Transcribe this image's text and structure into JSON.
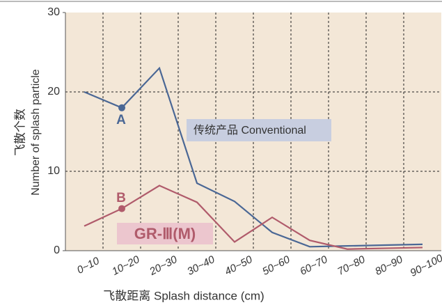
{
  "chart_data": {
    "type": "line",
    "xlabel": "飞散距离 Splash distance (cm)",
    "ylabel": [
      "飞散个数",
      "Number of splash particle"
    ],
    "categories": [
      "0~10",
      "10~20",
      "20~30",
      "30~40",
      "40~50",
      "50~60",
      "60~70",
      "70~80",
      "80~90",
      "90~100"
    ],
    "series": [
      {
        "name": "传统产品 Conventional",
        "color": "#4a6795",
        "values": [
          20,
          18,
          23,
          8.5,
          6.2,
          2.3,
          0.5,
          0.6,
          0.7,
          0.8
        ]
      },
      {
        "name": "GR-Ⅲ(M)",
        "color": "#b05b6b",
        "values": [
          3.1,
          5.3,
          8.2,
          6.1,
          1.1,
          4.2,
          1.3,
          0.2,
          0.3,
          0.4
        ]
      }
    ],
    "annotations": [
      "A",
      "B"
    ],
    "ylim": [
      0,
      30
    ],
    "yticks": [
      0,
      10,
      20,
      30
    ],
    "grid": true,
    "background": "#f3e7d7"
  }
}
